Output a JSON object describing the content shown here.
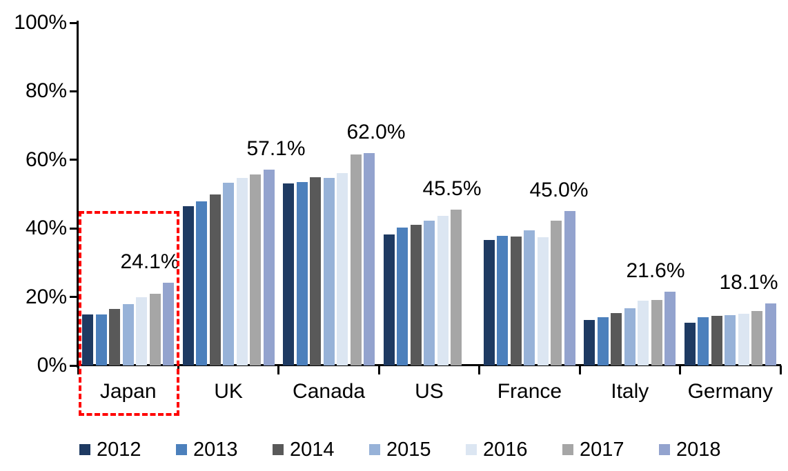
{
  "chart_data": {
    "type": "bar",
    "title": "",
    "xlabel": "",
    "ylabel": "",
    "categories": [
      "Japan",
      "UK",
      "Canada",
      "US",
      "France",
      "Italy",
      "Germany"
    ],
    "series": [
      {
        "name": "2012",
        "color": "#1E3A62",
        "values": [
          14.8,
          46.4,
          53.1,
          38.2,
          36.6,
          13.2,
          12.5
        ]
      },
      {
        "name": "2013",
        "color": "#4C80BC",
        "values": [
          14.9,
          47.9,
          53.5,
          40.2,
          37.8,
          14.0,
          14.0
        ]
      },
      {
        "name": "2014",
        "color": "#595959",
        "values": [
          16.5,
          50.0,
          54.9,
          41.0,
          37.7,
          15.3,
          14.4
        ]
      },
      {
        "name": "2015",
        "color": "#97B2D8",
        "values": [
          18.0,
          53.3,
          54.7,
          42.2,
          39.4,
          16.8,
          14.7
        ]
      },
      {
        "name": "2016",
        "color": "#DCE6F2",
        "values": [
          19.9,
          54.8,
          56.2,
          43.7,
          37.4,
          18.9,
          15.2
        ]
      },
      {
        "name": "2017",
        "color": "#A6A6A6",
        "values": [
          21.0,
          55.8,
          61.5,
          45.5,
          42.3,
          19.1,
          15.9
        ]
      },
      {
        "name": "2018",
        "color": "#93A3CE",
        "values": [
          24.1,
          57.1,
          62.0,
          null,
          45.0,
          21.6,
          18.1
        ]
      }
    ],
    "annotations": [
      {
        "category": "Japan",
        "text": "24.1%",
        "value": 24.1
      },
      {
        "category": "UK",
        "text": "57.1%",
        "value": 57.1
      },
      {
        "category": "Canada",
        "text": "62.0%",
        "value": 62.0
      },
      {
        "category": "US",
        "text": "45.5%",
        "value": 45.5
      },
      {
        "category": "France",
        "text": "45.0%",
        "value": 45.0
      },
      {
        "category": "Italy",
        "text": "21.6%",
        "value": 21.6
      },
      {
        "category": "Germany",
        "text": "18.1%",
        "value": 18.1
      }
    ],
    "y_axis": {
      "tick_labels": [
        "0%",
        "20%",
        "40%",
        "60%",
        "80%",
        "100%"
      ],
      "tick_values": [
        0,
        20,
        40,
        60,
        80,
        100
      ],
      "min": 0,
      "max": 100,
      "grid": false
    },
    "legend": {
      "position": "bottom",
      "entries": [
        "2012",
        "2013",
        "2014",
        "2015",
        "2016",
        "2017",
        "2018"
      ]
    },
    "highlight": {
      "category": "Japan",
      "shape": "dashed-rectangle",
      "color": "#FF0000"
    }
  }
}
